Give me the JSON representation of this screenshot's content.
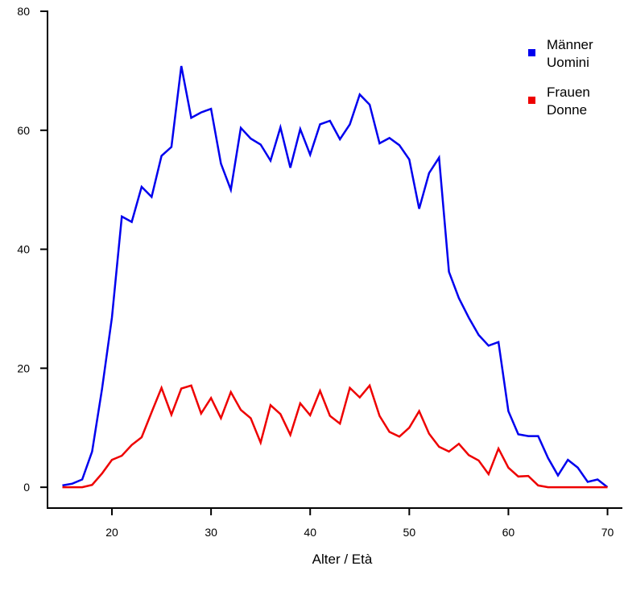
{
  "chart_data": {
    "type": "line",
    "title": "",
    "xlabel": "Alter / Età",
    "ylabel": "",
    "xlim": [
      13.5,
      71.5
    ],
    "ylim": [
      -3.5,
      80
    ],
    "xticks": [
      20,
      30,
      40,
      50,
      60,
      70
    ],
    "yticks": [
      0,
      20,
      40,
      60,
      80
    ],
    "grid": false,
    "legend_position": "top-right",
    "x": [
      15,
      16,
      17,
      18,
      19,
      20,
      21,
      22,
      23,
      24,
      25,
      26,
      27,
      28,
      29,
      30,
      31,
      32,
      33,
      34,
      35,
      36,
      37,
      38,
      39,
      40,
      41,
      42,
      43,
      44,
      45,
      46,
      47,
      48,
      49,
      50,
      51,
      52,
      53,
      54,
      55,
      56,
      57,
      58,
      59,
      60,
      61,
      62,
      63,
      64,
      65,
      66,
      67,
      68,
      69,
      70
    ],
    "series": [
      {
        "name": "Männer\nUomini",
        "legend_lines": [
          "Männer",
          "Uomini"
        ],
        "color": "#0000ee",
        "values": [
          0.3,
          0.6,
          1.3,
          6,
          16.5,
          28.5,
          45.5,
          44.6,
          50.5,
          48.8,
          55.7,
          57.2,
          70.8,
          62.1,
          63,
          63.6,
          54.4,
          50,
          60.4,
          58.6,
          57.6,
          54.9,
          60.5,
          53.7,
          60.2,
          55.9,
          61,
          61.6,
          58.5,
          61,
          66,
          64.3,
          57.8,
          58.7,
          57.5,
          55.1,
          46.8,
          52.8,
          55.4,
          36.2,
          31.8,
          28.5,
          25.6,
          23.8,
          24.4,
          12.8,
          8.9,
          8.6,
          8.6,
          4.9,
          2,
          4.6,
          3.3,
          0.9,
          1.3,
          0
        ]
      },
      {
        "name": "Frauen\nDonne",
        "legend_lines": [
          "Frauen",
          "Donne"
        ],
        "color": "#ee0000",
        "values": [
          0,
          0,
          0,
          0.4,
          2.3,
          4.6,
          5.3,
          7.1,
          8.4,
          12.6,
          16.7,
          12.2,
          16.6,
          17.1,
          12.4,
          15,
          11.6,
          16,
          13,
          11.6,
          7.5,
          13.8,
          12.3,
          8.8,
          14.1,
          12.1,
          16.2,
          12,
          10.7,
          16.7,
          15.1,
          17.1,
          12,
          9.3,
          8.5,
          10,
          12.8,
          9,
          6.8,
          6,
          7.3,
          5.4,
          4.5,
          2.2,
          6.5,
          3.3,
          1.8,
          1.9,
          0.3,
          0,
          0,
          0,
          0,
          0,
          0,
          0
        ]
      }
    ]
  }
}
